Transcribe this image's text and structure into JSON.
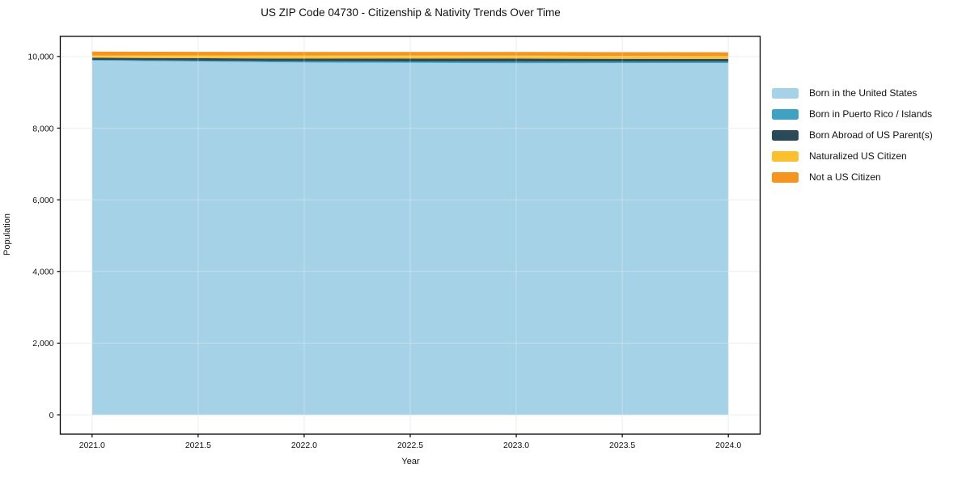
{
  "chart_data": {
    "type": "area",
    "stacked": true,
    "title": "US ZIP Code 04730 - Citizenship & Nativity Trends Over Time",
    "xlabel": "Year",
    "ylabel": "Population",
    "x": [
      2021,
      2022,
      2023,
      2024
    ],
    "series": [
      {
        "name": "Born in the United States",
        "color": "#A6D2E8",
        "values": [
          9885,
          9830,
          9810,
          9815
        ]
      },
      {
        "name": "Born in Puerto Rico / Islands",
        "color": "#3FA2C2",
        "values": [
          20,
          35,
          45,
          40
        ]
      },
      {
        "name": "Born Abroad of US Parent(s)",
        "color": "#2A4A5A",
        "values": [
          60,
          75,
          85,
          75
        ]
      },
      {
        "name": "Naturalized US Citizen",
        "color": "#FBC02D",
        "values": [
          65,
          90,
          85,
          75
        ]
      },
      {
        "name": "Not a US Citizen",
        "color": "#F5941F",
        "values": [
          105,
          95,
          100,
          110
        ]
      }
    ],
    "x_tick_labels": [
      "2021.0",
      "2021.5",
      "2022.0",
      "2022.5",
      "2023.0",
      "2023.5",
      "2024.0"
    ],
    "x_tick_values": [
      2021,
      2021.5,
      2022,
      2022.5,
      2023,
      2023.5,
      2024
    ],
    "y_tick_labels": [
      "0",
      "2,000",
      "4,000",
      "6,000",
      "8,000",
      "10,000"
    ],
    "y_tick_values": [
      0,
      2000,
      4000,
      6000,
      8000,
      10000
    ],
    "xlim": [
      2020.85,
      2024.15
    ],
    "ylim": [
      -540,
      10560
    ],
    "grid": true,
    "background": "#ffffff",
    "frame_color": "#000000",
    "grid_color": "#e7e7e7",
    "text_color": "#111111",
    "legend_position": "right-outside"
  }
}
